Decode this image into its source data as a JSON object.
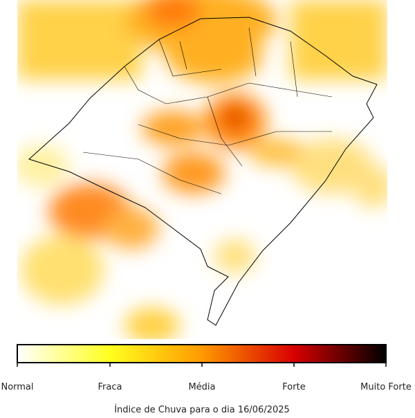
{
  "legend": {
    "labels": [
      "Normal",
      "Fraca",
      "Média",
      "Forte",
      "Muito Forte"
    ]
  },
  "caption": "Índice de Chuva para o dia 16/06/2025"
}
